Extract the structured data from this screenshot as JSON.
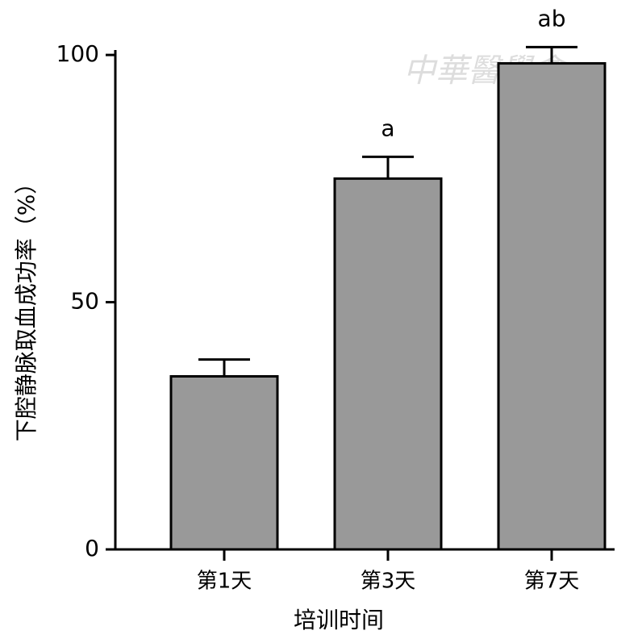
{
  "chart_data": {
    "type": "bar",
    "y_label": "下腔静脉取血成功率（%）",
    "x_label": "培训时间",
    "watermark": "中華醫學會",
    "categories": [
      "第1天",
      "第3天",
      "第7天"
    ],
    "values": [
      35,
      75,
      98.3
    ],
    "errors": [
      3.4,
      4.4,
      3.3
    ],
    "annotations": [
      null,
      "a",
      "ab"
    ],
    "color": "#999999",
    "ylim": [
      0,
      101
    ],
    "yticks": [
      0,
      50,
      100
    ]
  }
}
